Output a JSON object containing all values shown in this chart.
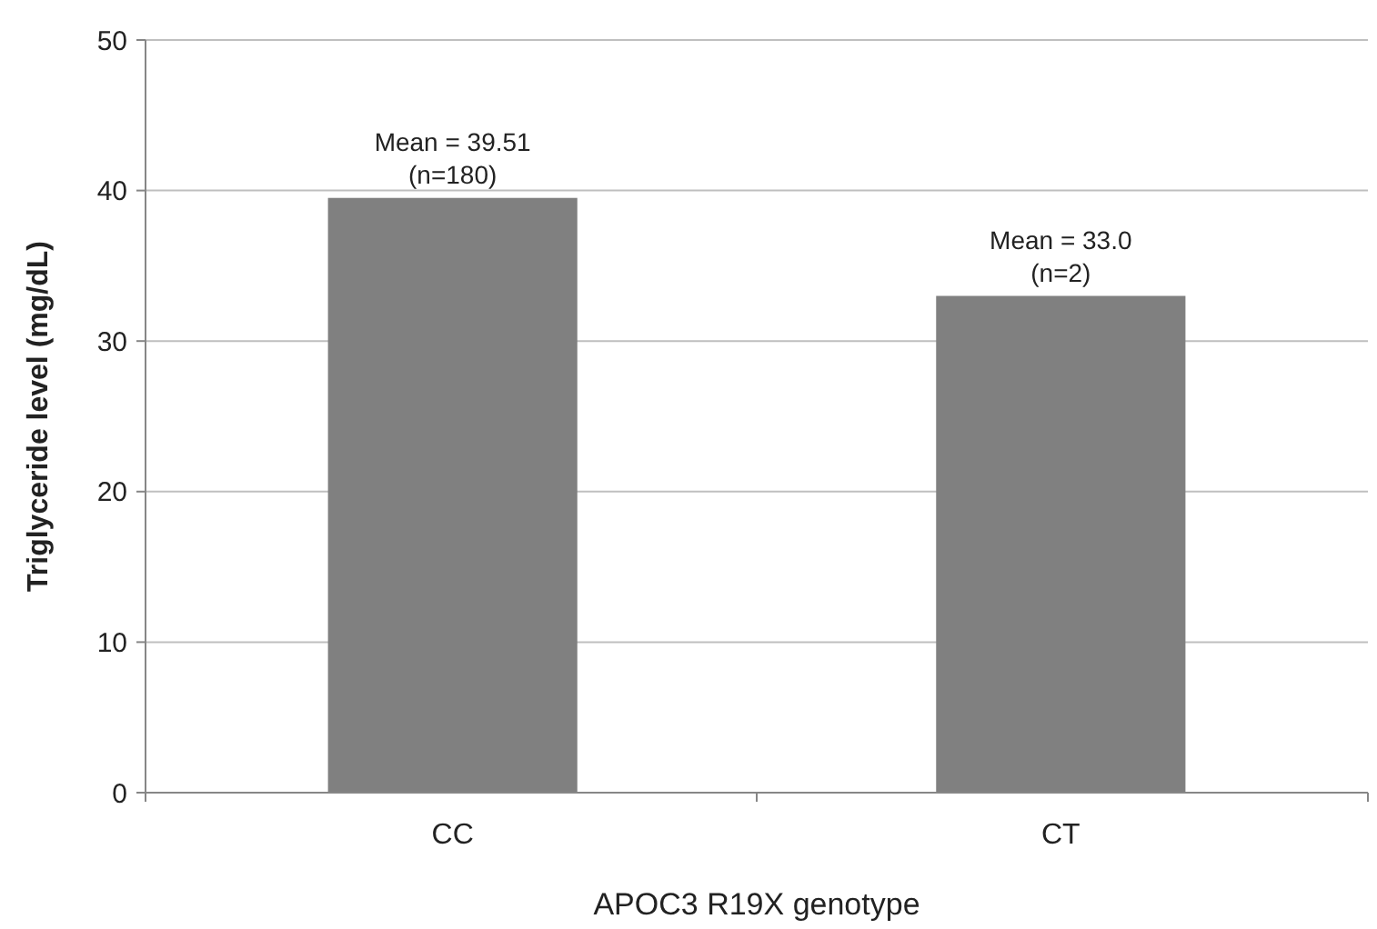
{
  "chart_data": {
    "type": "bar",
    "categories": [
      "CC",
      "CT"
    ],
    "values": [
      39.51,
      33.0
    ],
    "color": "#808080",
    "xlabel": "APOC3 R19X genotype",
    "ylabel": "Triglyceride level (mg/dL)",
    "ylim": [
      0,
      50
    ],
    "yticks": [
      0,
      10,
      20,
      30,
      40,
      50
    ],
    "grid": "y",
    "annotations": [
      {
        "text": "Mean = 39.51\n(n=180)",
        "x": "CC",
        "y": 39.51
      },
      {
        "text": "Mean = 33.0\n(n=2)",
        "x": "CT",
        "y": 33.0
      }
    ]
  }
}
